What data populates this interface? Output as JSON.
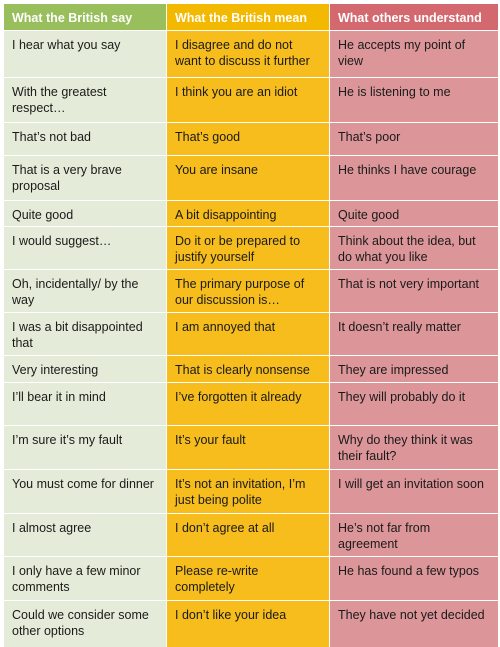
{
  "headers": [
    "What the British say",
    "What the British mean",
    "What others understand"
  ],
  "rows": [
    [
      "I hear what you say",
      "I disagree and do not want to discuss it further",
      "He accepts my point of view"
    ],
    [
      "With the greatest respect…",
      "I think you are an idiot",
      "He is listening to me"
    ],
    [
      "That’s not bad",
      "That’s good",
      "That’s poor"
    ],
    [
      "That is a very brave proposal",
      "You are insane",
      "He thinks I have courage"
    ],
    [
      "Quite good",
      "A bit disappointing",
      "Quite good"
    ],
    [
      "I would suggest…",
      "Do it or be prepared to justify yourself",
      "Think about the idea, but do what you like"
    ],
    [
      "Oh, incidentally/ by the way",
      "The primary purpose of our discussion is…",
      "That is not very important"
    ],
    [
      "I was a bit disappointed that",
      "I am annoyed that",
      "It doesn’t really matter"
    ],
    [
      "Very interesting",
      "That is clearly nonsense",
      "They are impressed"
    ],
    [
      "I’ll bear it in mind",
      "I’ve forgotten it already",
      "They will probably do it"
    ],
    [
      "I’m sure it’s my fault",
      "It’s your fault",
      "Why do they think it was their fault?"
    ],
    [
      "You must come for dinner",
      "It’s not an invitation, I’m just being polite",
      "I will get an invitation soon"
    ],
    [
      "I almost agree",
      "I don’t agree at all",
      "He’s not far from agreement"
    ],
    [
      "I only have a few minor comments",
      "Please re-write completely",
      "He has found a few typos"
    ],
    [
      "Could we consider some other options",
      "I don’t like your idea",
      "They have not yet decided"
    ]
  ],
  "colors": {
    "header_green": "#98bf5c",
    "header_orange": "#f3b800",
    "header_red": "#d3696f",
    "col_green": "#e4ecd9",
    "col_orange": "#f6bd1c",
    "col_red": "#dc9699"
  }
}
